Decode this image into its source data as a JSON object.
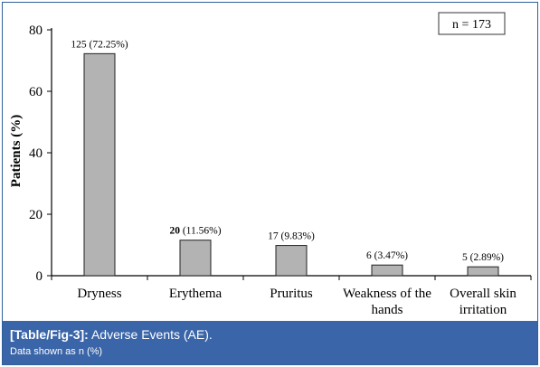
{
  "chart_data": {
    "type": "bar",
    "categories": [
      "Dryness",
      "Erythema",
      "Pruritus",
      "Weakness of the hands",
      "Overall skin irritation"
    ],
    "category_lines": [
      [
        "Dryness"
      ],
      [
        "Erythema"
      ],
      [
        "Pruritus"
      ],
      [
        "Weakness of the",
        "hands"
      ],
      [
        "Overall skin",
        "irritation"
      ]
    ],
    "values": [
      72.25,
      11.56,
      9.83,
      3.47,
      2.89
    ],
    "data_labels": [
      {
        "count": "125",
        "pct": "(72.25%)"
      },
      {
        "count": "20",
        "pct": "(11.56%)"
      },
      {
        "count": "17",
        "pct": "(9.83%)"
      },
      {
        "count": "6",
        "pct": "(3.47%)"
      },
      {
        "count": "5",
        "pct": "(2.89%)"
      }
    ],
    "ylabel": "Patients (%)",
    "xlabel": "",
    "ylim": [
      0,
      80
    ],
    "yticks": [
      0,
      20,
      40,
      60,
      80
    ],
    "annotation": "n = 173",
    "grid": false,
    "bar_color": "#b3b3b3"
  },
  "caption": {
    "tag": "[Table/Fig-3]:",
    "title": " Adverse Events (AE).",
    "note": "Data shown as n (%)"
  },
  "colors": {
    "caption_bg": "#3a65a8",
    "caption_text": "#ffffff"
  }
}
